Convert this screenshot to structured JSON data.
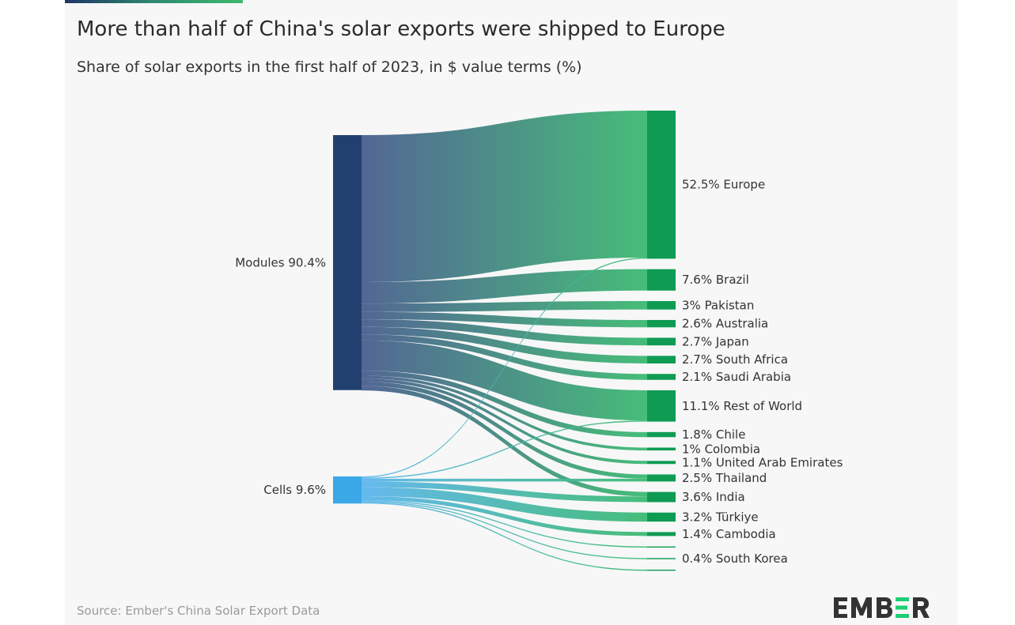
{
  "title": "More than half of China's solar exports were shipped to Europe",
  "subtitle": "Share of solar exports in the first half of 2023, in $ value terms (%)",
  "source": "Source: Ember's China Solar Export Data",
  "logo": "EMBER",
  "colors": {
    "modules": "#22406f",
    "cells": "#3aa7e6",
    "target": "#0f9b53",
    "flow_end": "#3dba72",
    "background": "#f7f7f7"
  },
  "chart_data": {
    "type": "sankey",
    "sources": [
      {
        "id": "modules",
        "label": "Modules 90.4%",
        "value": 90.4
      },
      {
        "id": "cells",
        "label": "Cells 9.6%",
        "value": 9.6
      }
    ],
    "targets": [
      {
        "id": "europe",
        "label": "52.5% Europe",
        "value": 52.5
      },
      {
        "id": "brazil",
        "label": "7.6% Brazil",
        "value": 7.6
      },
      {
        "id": "pakistan",
        "label": "3% Pakistan",
        "value": 3
      },
      {
        "id": "australia",
        "label": "2.6% Australia",
        "value": 2.6
      },
      {
        "id": "japan",
        "label": "2.7% Japan",
        "value": 2.7
      },
      {
        "id": "southafrica",
        "label": "2.7% South Africa",
        "value": 2.7
      },
      {
        "id": "saudi",
        "label": "2.1% Saudi Arabia",
        "value": 2.1
      },
      {
        "id": "row",
        "label": "11.1% Rest of World",
        "value": 11.1
      },
      {
        "id": "chile",
        "label": "1.8% Chile",
        "value": 1.8
      },
      {
        "id": "colombia",
        "label": "1% Colombia",
        "value": 1
      },
      {
        "id": "uae",
        "label": "1.1% United Arab Emirates",
        "value": 1.1
      },
      {
        "id": "thailand",
        "label": "2.5% Thailand",
        "value": 2.5
      },
      {
        "id": "india",
        "label": "3.6% India",
        "value": 3.6
      },
      {
        "id": "turkiye",
        "label": "3.2% Türkiye",
        "value": 3.2
      },
      {
        "id": "cambodia",
        "label": "1.4% Cambodia",
        "value": 1.4
      },
      {
        "id": "unlabeled1",
        "label": "",
        "value": 0.4
      },
      {
        "id": "southkorea",
        "label": "0.4% South Korea",
        "value": 0.4
      },
      {
        "id": "unlabeled2",
        "label": "",
        "value": 0.4
      }
    ],
    "flows": [
      {
        "from": "modules",
        "to": "europe",
        "value": 52.1
      },
      {
        "from": "modules",
        "to": "brazil",
        "value": 7.6
      },
      {
        "from": "modules",
        "to": "pakistan",
        "value": 3
      },
      {
        "from": "modules",
        "to": "australia",
        "value": 2.6
      },
      {
        "from": "modules",
        "to": "japan",
        "value": 2.7
      },
      {
        "from": "modules",
        "to": "southafrica",
        "value": 2.7
      },
      {
        "from": "modules",
        "to": "saudi",
        "value": 2.1
      },
      {
        "from": "modules",
        "to": "row",
        "value": 10.7
      },
      {
        "from": "modules",
        "to": "chile",
        "value": 1.8
      },
      {
        "from": "modules",
        "to": "colombia",
        "value": 1
      },
      {
        "from": "modules",
        "to": "uae",
        "value": 1.1
      },
      {
        "from": "modules",
        "to": "thailand",
        "value": 1.5
      },
      {
        "from": "modules",
        "to": "india",
        "value": 1.6
      },
      {
        "from": "cells",
        "to": "europe",
        "value": 0.4
      },
      {
        "from": "cells",
        "to": "row",
        "value": 0.4
      },
      {
        "from": "cells",
        "to": "thailand",
        "value": 1.0
      },
      {
        "from": "cells",
        "to": "india",
        "value": 2.0
      },
      {
        "from": "cells",
        "to": "turkiye",
        "value": 3.2
      },
      {
        "from": "cells",
        "to": "cambodia",
        "value": 1.4
      },
      {
        "from": "cells",
        "to": "unlabeled1",
        "value": 0.4
      },
      {
        "from": "cells",
        "to": "southkorea",
        "value": 0.4
      },
      {
        "from": "cells",
        "to": "unlabeled2",
        "value": 0.4
      }
    ]
  }
}
